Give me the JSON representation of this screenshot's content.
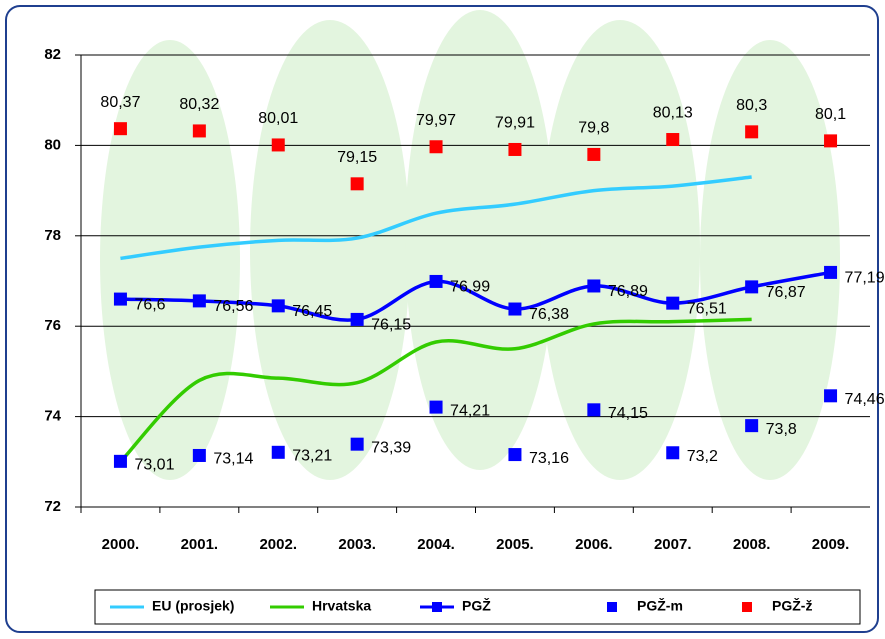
{
  "chart_data": {
    "type": "line",
    "categories": [
      "2000.",
      "2001.",
      "2002.",
      "2003.",
      "2004.",
      "2005.",
      "2006.",
      "2007.",
      "2008.",
      "2009."
    ],
    "ylim": [
      72,
      82
    ],
    "yticks": [
      72,
      74,
      76,
      78,
      80,
      82
    ],
    "grid": true,
    "legend": "bottom",
    "series": [
      {
        "name": "EU (prosjek)",
        "color": "#33ccff",
        "style": "line",
        "values": [
          77.5,
          77.75,
          77.9,
          77.95,
          78.5,
          78.7,
          79.0,
          79.1,
          79.3,
          null
        ]
      },
      {
        "name": "Hrvatska",
        "color": "#33cc00",
        "style": "line",
        "values": [
          73.0,
          74.8,
          74.85,
          74.75,
          75.65,
          75.5,
          76.05,
          76.1,
          76.15,
          null
        ]
      },
      {
        "name": "PGŽ",
        "color": "#0000ff",
        "style": "line-markers",
        "values": [
          76.6,
          76.56,
          76.45,
          76.15,
          76.99,
          76.38,
          76.89,
          76.51,
          76.87,
          77.19
        ],
        "value_labels": [
          "76,6",
          "76,56",
          "76,45",
          "76,15",
          "76,99",
          "76,38",
          "76,89",
          "76,51",
          "76,87",
          "77,19"
        ]
      },
      {
        "name": "PGŽ-m",
        "color": "#0000ff",
        "style": "markers",
        "values": [
          73.01,
          73.14,
          73.21,
          73.39,
          74.21,
          73.16,
          74.15,
          73.2,
          73.8,
          74.46
        ],
        "value_labels": [
          "73,01",
          "73,14",
          "73,21",
          "73,39",
          "74,21",
          "73,16",
          "74,15",
          "73,2",
          "73,8",
          "74,46"
        ]
      },
      {
        "name": "PGŽ-ž",
        "color": "#ff0000",
        "style": "markers",
        "values": [
          80.37,
          80.32,
          80.01,
          79.15,
          79.97,
          79.91,
          79.8,
          80.13,
          80.3,
          80.1
        ],
        "value_labels": [
          "80,37",
          "80,32",
          "80,01",
          "79,15",
          "79,97",
          "79,91",
          "79,8",
          "80,13",
          "80,3",
          "80,1"
        ]
      }
    ]
  }
}
